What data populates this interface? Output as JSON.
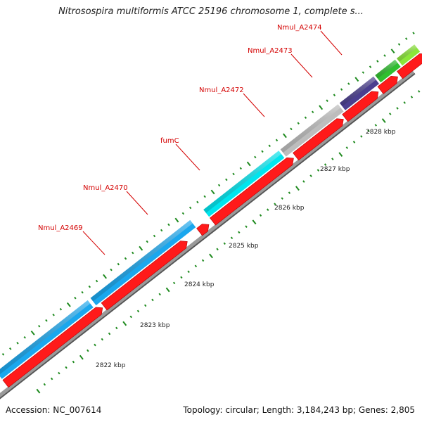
{
  "title": "Nitrosospira multiformis ATCC 25196 chromosome 1, complete s...",
  "footer": {
    "accession": "Accession: NC_007614",
    "summary": "Topology: circular; Length: 3,184,243 bp; Genes: 2,805"
  },
  "colors": {
    "backbone": "#9a9a9a",
    "cds_strand": "#ff1a1a",
    "tick": "#1e8a1e",
    "label": "#d40000"
  },
  "genes": [
    {
      "name": "Nmul_A2469",
      "color": "#1aa7ee"
    },
    {
      "name": "Nmul_A2470",
      "color": "#ff1a1a"
    },
    {
      "name": "fumC",
      "color": "#00e5ee"
    },
    {
      "name": "Nmul_A2472",
      "color": "#bdbdbd"
    },
    {
      "name": "Nmul_A2473",
      "color": "#4b3f8f"
    },
    {
      "name": "Nmul_A2474",
      "color": "#2fbf2f"
    },
    {
      "name": "",
      "color": "#8be63a"
    }
  ],
  "scale_ticks": [
    "2822 kbp",
    "2823 kbp",
    "2824 kbp",
    "2825 kbp",
    "2826 kbp",
    "2827 kbp",
    "2828 kbp"
  ]
}
